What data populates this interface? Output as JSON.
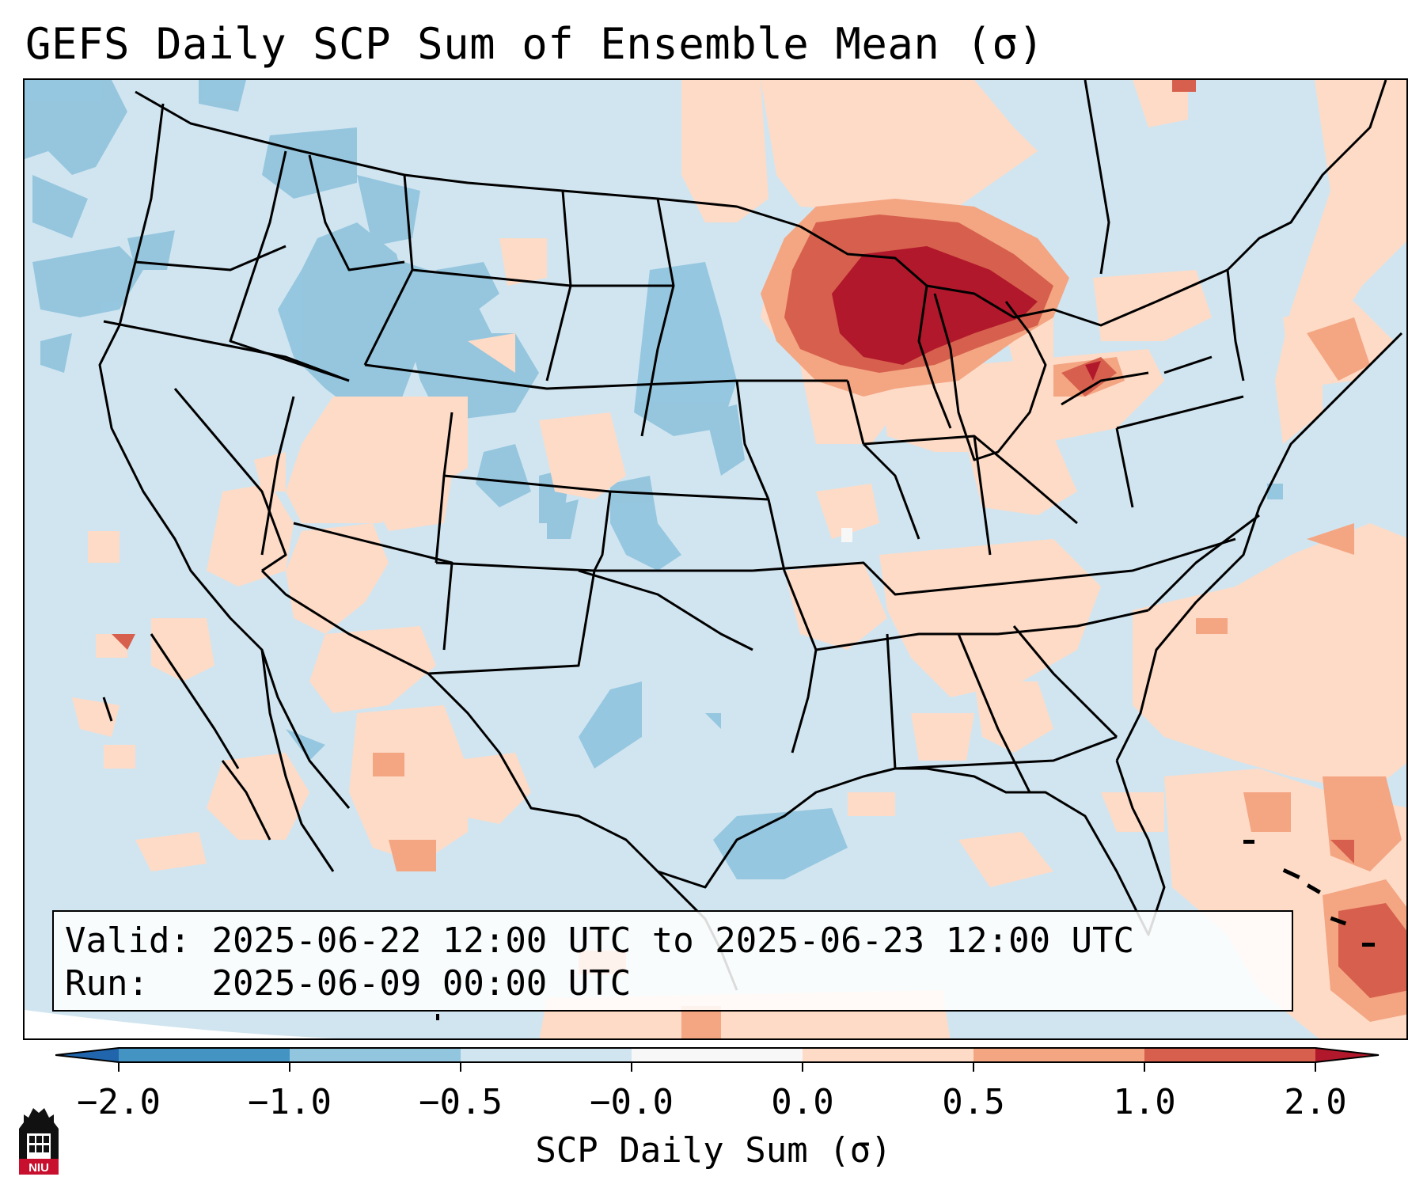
{
  "title": "GEFS Daily SCP Sum of Ensemble Mean (σ)",
  "info": {
    "valid_label": "Valid:",
    "valid_value": "2025-06-22 12:00 UTC to 2025-06-23 12:00 UTC",
    "run_label": "Run:",
    "run_value": "2025-06-09 00:00 UTC"
  },
  "colorbar": {
    "label": "SCP Daily Sum (σ)",
    "ticks": [
      "−2.0",
      "−1.0",
      "−0.5",
      "−0.0",
      "0.0",
      "0.5",
      "1.0",
      "2.0"
    ],
    "colors": [
      "#4393c3",
      "#92c5de",
      "#d1e5f0",
      "#f7f7f7",
      "#fddbc7",
      "#f4a582",
      "#d6604d"
    ],
    "extend_low": "#2166ac",
    "extend_high": "#b2182b"
  },
  "legend_colors": {
    "background": "#d1e5f0",
    "light_blue": "#92c5de",
    "light_red": "#fddbc7",
    "salmon": "#f4a582",
    "red": "#d6604d",
    "dark_red": "#b2182b",
    "near_zero": "#f7f7f7"
  },
  "logo": {
    "text": "NIU",
    "icon": "university-tower-icon"
  }
}
